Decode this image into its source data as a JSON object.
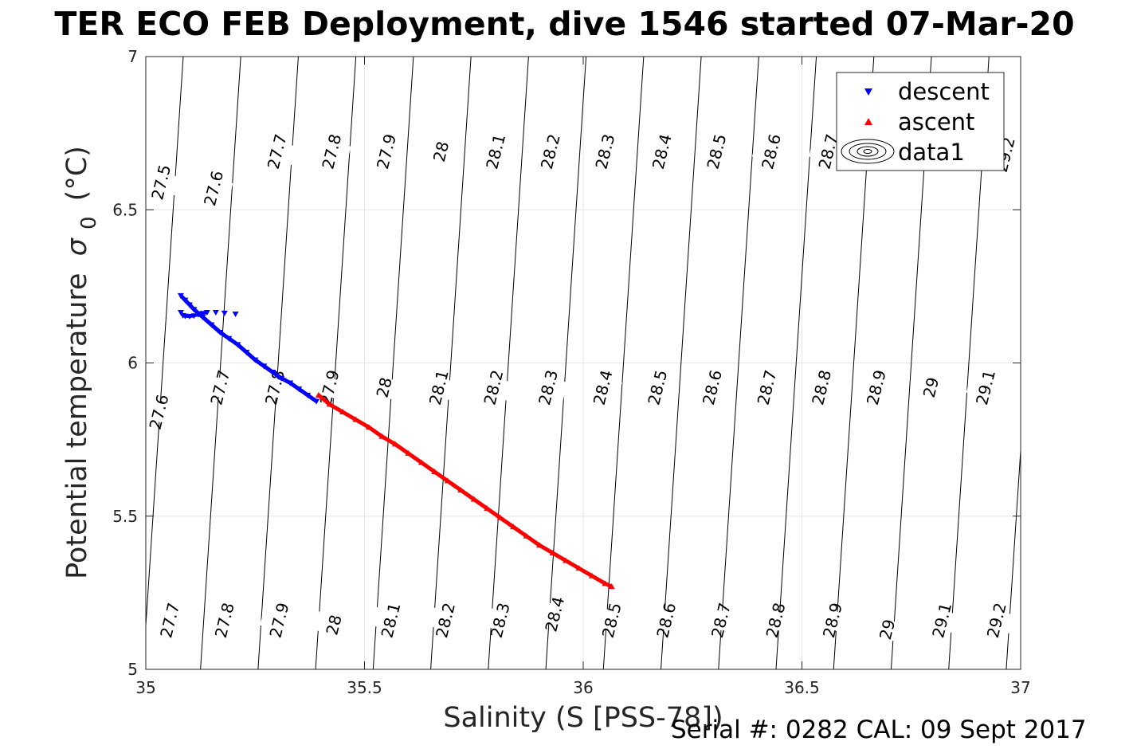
{
  "chart_data": {
    "type": "scatter",
    "title": "TER ECO FEB Deployment, dive 1546 started 07-Mar-20",
    "xlabel": "Salinity (S [PSS-78])",
    "ylabel": "Potential temperature σ_0 (°C)",
    "ylabel_main": "Potential temperature",
    "ylabel_sigma": "σ",
    "ylabel_sub": "0",
    "ylabel_unit": "(°C)",
    "xlim": [
      35,
      37
    ],
    "ylim": [
      5,
      7
    ],
    "xticks": [
      35,
      35.5,
      36,
      36.5,
      37
    ],
    "xtick_labels": [
      "35",
      "35.5",
      "36",
      "36.5",
      "37"
    ],
    "yticks": [
      5,
      5.5,
      6,
      6.5,
      7
    ],
    "ytick_labels": [
      "5",
      "5.5",
      "6",
      "6.5",
      "7"
    ],
    "grid": true,
    "legend_position": "top-right",
    "legend": [
      {
        "label": "descent",
        "marker": "triangle-down",
        "color": "#0000ff"
      },
      {
        "label": "ascent",
        "marker": "triangle-up",
        "color": "#ff0000"
      },
      {
        "label": "data1",
        "marker": "contour",
        "color": "#000000"
      }
    ],
    "series": [
      {
        "name": "descent",
        "color": "#0000ff",
        "marker": "triangle-down",
        "x": [
          35.08,
          35.09,
          35.1,
          35.11,
          35.13,
          35.15,
          35.17,
          35.19,
          35.21,
          35.23,
          35.25,
          35.27,
          35.29,
          35.31,
          35.33,
          35.35,
          35.37,
          35.39,
          35.08,
          35.085,
          35.09,
          35.1,
          35.11,
          35.12,
          35.13,
          35.14,
          35.16,
          35.18,
          35.205
        ],
        "y": [
          6.22,
          6.205,
          6.19,
          6.175,
          6.15,
          6.125,
          6.1,
          6.08,
          6.06,
          6.035,
          6.01,
          5.99,
          5.97,
          5.95,
          5.935,
          5.915,
          5.895,
          5.875,
          6.165,
          6.155,
          6.153,
          6.152,
          6.154,
          6.158,
          6.162,
          6.165,
          6.165,
          6.163,
          6.16
        ]
      },
      {
        "name": "ascent",
        "color": "#ff0000",
        "marker": "triangle-up",
        "x": [
          35.395,
          35.42,
          35.45,
          35.48,
          35.51,
          35.54,
          35.57,
          35.6,
          35.63,
          35.66,
          35.69,
          35.72,
          35.75,
          35.78,
          35.81,
          35.84,
          35.87,
          35.9,
          35.93,
          35.96,
          35.99,
          36.02,
          36.05,
          36.065
        ],
        "y": [
          5.895,
          5.865,
          5.84,
          5.815,
          5.79,
          5.76,
          5.735,
          5.705,
          5.675,
          5.645,
          5.615,
          5.585,
          5.555,
          5.525,
          5.495,
          5.465,
          5.435,
          5.405,
          5.38,
          5.355,
          5.33,
          5.305,
          5.28,
          5.27
        ]
      }
    ],
    "contour_levels": [
      27.5,
      27.6,
      27.7,
      27.8,
      27.9,
      28,
      28.1,
      28.2,
      28.3,
      28.4,
      28.5,
      28.6,
      28.7,
      28.8,
      28.9,
      29,
      29.1,
      29.2
    ],
    "contour_line_levels": [
      27.4,
      27.5,
      27.6,
      27.7,
      27.8,
      27.9,
      28,
      28.1,
      28.2,
      28.3,
      28.4,
      28.5,
      28.6,
      28.7,
      28.8,
      28.9,
      29,
      29.1,
      29.2,
      29.3
    ],
    "contour_labels": [
      {
        "text": "27.5",
        "x": 35.035,
        "y": 6.59
      },
      {
        "text": "27.6",
        "x": 35.155,
        "y": 6.57
      },
      {
        "text": "27.7",
        "x": 35.3,
        "y": 6.69
      },
      {
        "text": "27.8",
        "x": 35.425,
        "y": 6.69
      },
      {
        "text": "27.9",
        "x": 35.55,
        "y": 6.69
      },
      {
        "text": "28",
        "x": 35.675,
        "y": 6.69
      },
      {
        "text": "28.1",
        "x": 35.8,
        "y": 6.69
      },
      {
        "text": "28.2",
        "x": 35.925,
        "y": 6.69
      },
      {
        "text": "28.3",
        "x": 36.05,
        "y": 6.69
      },
      {
        "text": "28.4",
        "x": 36.18,
        "y": 6.69
      },
      {
        "text": "28.5",
        "x": 36.305,
        "y": 6.69
      },
      {
        "text": "28.6",
        "x": 36.43,
        "y": 6.69
      },
      {
        "text": "28.7",
        "x": 36.56,
        "y": 6.69
      },
      {
        "text": "29.2",
        "x": 36.965,
        "y": 6.68
      },
      {
        "text": "27.6",
        "x": 35.03,
        "y": 5.84
      },
      {
        "text": "27.7",
        "x": 35.17,
        "y": 5.92
      },
      {
        "text": "27.8",
        "x": 35.295,
        "y": 5.92
      },
      {
        "text": "27.9",
        "x": 35.42,
        "y": 5.92
      },
      {
        "text": "28",
        "x": 35.545,
        "y": 5.92
      },
      {
        "text": "28.1",
        "x": 35.67,
        "y": 5.92
      },
      {
        "text": "28.2",
        "x": 35.795,
        "y": 5.92
      },
      {
        "text": "28.3",
        "x": 35.92,
        "y": 5.92
      },
      {
        "text": "28.4",
        "x": 36.045,
        "y": 5.92
      },
      {
        "text": "28.5",
        "x": 36.17,
        "y": 5.92
      },
      {
        "text": "28.6",
        "x": 36.295,
        "y": 5.92
      },
      {
        "text": "28.7",
        "x": 36.42,
        "y": 5.92
      },
      {
        "text": "28.8",
        "x": 36.545,
        "y": 5.92
      },
      {
        "text": "28.9",
        "x": 36.67,
        "y": 5.92
      },
      {
        "text": "29",
        "x": 36.795,
        "y": 5.92
      },
      {
        "text": "29.1",
        "x": 36.92,
        "y": 5.92
      },
      {
        "text": "27.7",
        "x": 35.055,
        "y": 5.16
      },
      {
        "text": "27.8",
        "x": 35.18,
        "y": 5.16
      },
      {
        "text": "27.9",
        "x": 35.305,
        "y": 5.16
      },
      {
        "text": "28",
        "x": 35.43,
        "y": 5.145
      },
      {
        "text": "28.1",
        "x": 35.56,
        "y": 5.16
      },
      {
        "text": "28.2",
        "x": 35.685,
        "y": 5.16
      },
      {
        "text": "28.3",
        "x": 35.81,
        "y": 5.16
      },
      {
        "text": "28.4",
        "x": 35.935,
        "y": 5.18
      },
      {
        "text": "28.5",
        "x": 36.065,
        "y": 5.16
      },
      {
        "text": "28.6",
        "x": 36.19,
        "y": 5.16
      },
      {
        "text": "28.7",
        "x": 36.315,
        "y": 5.16
      },
      {
        "text": "28.8",
        "x": 36.44,
        "y": 5.16
      },
      {
        "text": "28.9",
        "x": 36.57,
        "y": 5.16
      },
      {
        "text": "29",
        "x": 36.695,
        "y": 5.13
      },
      {
        "text": "29.1",
        "x": 36.82,
        "y": 5.16
      },
      {
        "text": "29.2",
        "x": 36.945,
        "y": 5.16
      }
    ]
  },
  "footer": {
    "serial_cal": "Serial #: 0282  CAL: 09 Sept 2017"
  }
}
